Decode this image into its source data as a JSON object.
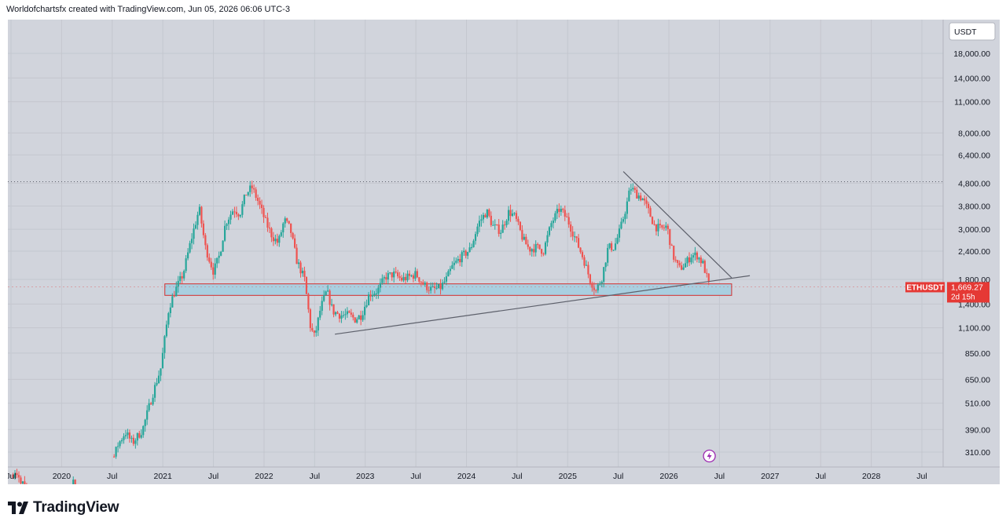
{
  "header": {
    "text": "Worldofchartsfx created with TradingView.com, Jun 05, 2026 06:06 UTC-3"
  },
  "brand": {
    "name": "TradingView",
    "logo_icon": "tradingview-logo-icon"
  },
  "colors": {
    "up": "#26a69a",
    "down": "#ef5350",
    "background": "#d1d4dc",
    "zone_fill": "#a9cfe0",
    "zone_border": "#d32f2f",
    "trendline": "#5d606b",
    "price_tag": "#e53935",
    "flash_icon": "#9c27b0"
  },
  "chart_data": {
    "type": "candlestick",
    "symbol": "ETHUSDT",
    "scale": "log",
    "grid": true,
    "currency_label": "USDT",
    "y_ticks": [
      "18,000.00",
      "14,000.00",
      "11,000.00",
      "8,000.00",
      "6,400.00",
      "4,800.00",
      "3,800.00",
      "3,000.00",
      "2,400.00",
      "1,800.00",
      "1,400.00",
      "1,100.00",
      "850.00",
      "650.00",
      "510.00",
      "390.00",
      "310.00"
    ],
    "y_tick_values": [
      18000,
      14000,
      11000,
      8000,
      6400,
      4800,
      3800,
      3000,
      2400,
      1800,
      1400,
      1100,
      850,
      650,
      510,
      390,
      310
    ],
    "x_ticks": [
      "Jul",
      "2020",
      "Jul",
      "2021",
      "Jul",
      "2022",
      "Jul",
      "2023",
      "Jul",
      "2024",
      "Jul",
      "2025",
      "Jul",
      "2026",
      "Jul",
      "2027",
      "Jul",
      "2028",
      "Jul"
    ],
    "x_tick_dates": [
      2019.5,
      2020.0,
      2020.5,
      2021.0,
      2021.5,
      2022.0,
      2022.5,
      2023.0,
      2023.5,
      2024.0,
      2024.5,
      2025.0,
      2025.5,
      2026.0,
      2026.5,
      2027.0,
      2027.5,
      2028.0,
      2028.5
    ],
    "last_price": {
      "symbol": "ETHUSDT",
      "value": "1,669.27",
      "countdown": "2d 15h",
      "price": 1669.27
    },
    "ath_dotted_level": 4870,
    "support_zone": {
      "start": 2021.02,
      "end": 2026.62,
      "low": 1530,
      "high": 1720
    },
    "trendlines": [
      {
        "name": "ascending-support",
        "from": [
          2022.7,
          1030
        ],
        "to": [
          2026.8,
          1870
        ]
      },
      {
        "name": "descending-resistance",
        "from": [
          2025.55,
          5400
        ],
        "to": [
          2026.62,
          1830
        ]
      }
    ],
    "price_path": [
      [
        2019.52,
        250
      ],
      [
        2019.62,
        225
      ],
      [
        2019.75,
        190
      ],
      [
        2019.85,
        150
      ],
      [
        2020.05,
        170
      ],
      [
        2020.12,
        230
      ],
      [
        2020.2,
        135
      ],
      [
        2020.35,
        200
      ],
      [
        2020.45,
        230
      ],
      [
        2020.55,
        330
      ],
      [
        2020.63,
        380
      ],
      [
        2020.7,
        340
      ],
      [
        2020.8,
        390
      ],
      [
        2020.9,
        560
      ],
      [
        2020.98,
        730
      ],
      [
        2021.06,
        1350
      ],
      [
        2021.12,
        1600
      ],
      [
        2021.2,
        1900
      ],
      [
        2021.28,
        2700
      ],
      [
        2021.36,
        3700
      ],
      [
        2021.42,
        2500
      ],
      [
        2021.5,
        1950
      ],
      [
        2021.56,
        2300
      ],
      [
        2021.62,
        3200
      ],
      [
        2021.7,
        3700
      ],
      [
        2021.76,
        3500
      ],
      [
        2021.82,
        4300
      ],
      [
        2021.88,
        4600
      ],
      [
        2021.94,
        4000
      ],
      [
        2022.02,
        3200
      ],
      [
        2022.08,
        2800
      ],
      [
        2022.14,
        2600
      ],
      [
        2022.2,
        3300
      ],
      [
        2022.26,
        3000
      ],
      [
        2022.32,
        2200
      ],
      [
        2022.4,
        1800
      ],
      [
        2022.46,
        1100
      ],
      [
        2022.5,
        1000
      ],
      [
        2022.56,
        1350
      ],
      [
        2022.62,
        1600
      ],
      [
        2022.68,
        1300
      ],
      [
        2022.76,
        1250
      ],
      [
        2022.84,
        1250
      ],
      [
        2022.9,
        1200
      ],
      [
        2022.96,
        1250
      ],
      [
        2023.04,
        1550
      ],
      [
        2023.12,
        1600
      ],
      [
        2023.2,
        1850
      ],
      [
        2023.28,
        1900
      ],
      [
        2023.36,
        1800
      ],
      [
        2023.44,
        1850
      ],
      [
        2023.5,
        1900
      ],
      [
        2023.58,
        1700
      ],
      [
        2023.66,
        1620
      ],
      [
        2023.74,
        1650
      ],
      [
        2023.8,
        1800
      ],
      [
        2023.86,
        2050
      ],
      [
        2023.94,
        2250
      ],
      [
        2024.04,
        2450
      ],
      [
        2024.12,
        3200
      ],
      [
        2024.2,
        3600
      ],
      [
        2024.26,
        3100
      ],
      [
        2024.34,
        2950
      ],
      [
        2024.42,
        3600
      ],
      [
        2024.48,
        3400
      ],
      [
        2024.56,
        2700
      ],
      [
        2024.62,
        2450
      ],
      [
        2024.7,
        2500
      ],
      [
        2024.76,
        2400
      ],
      [
        2024.84,
        3200
      ],
      [
        2024.92,
        3700
      ],
      [
        2025.0,
        3300
      ],
      [
        2025.08,
        2700
      ],
      [
        2025.16,
        2200
      ],
      [
        2025.22,
        1800
      ],
      [
        2025.28,
        1600
      ],
      [
        2025.34,
        1850
      ],
      [
        2025.4,
        2500
      ],
      [
        2025.46,
        2500
      ],
      [
        2025.52,
        3000
      ],
      [
        2025.58,
        3800
      ],
      [
        2025.62,
        4600
      ],
      [
        2025.68,
        4300
      ],
      [
        2025.74,
        4100
      ],
      [
        2025.8,
        3600
      ],
      [
        2025.86,
        3100
      ],
      [
        2025.92,
        3000
      ],
      [
        2025.98,
        3100
      ],
      [
        2026.04,
        2300
      ],
      [
        2026.1,
        2000
      ],
      [
        2026.16,
        2100
      ],
      [
        2026.22,
        2300
      ],
      [
        2026.28,
        2300
      ],
      [
        2026.34,
        2100
      ],
      [
        2026.4,
        1669.27
      ]
    ]
  }
}
